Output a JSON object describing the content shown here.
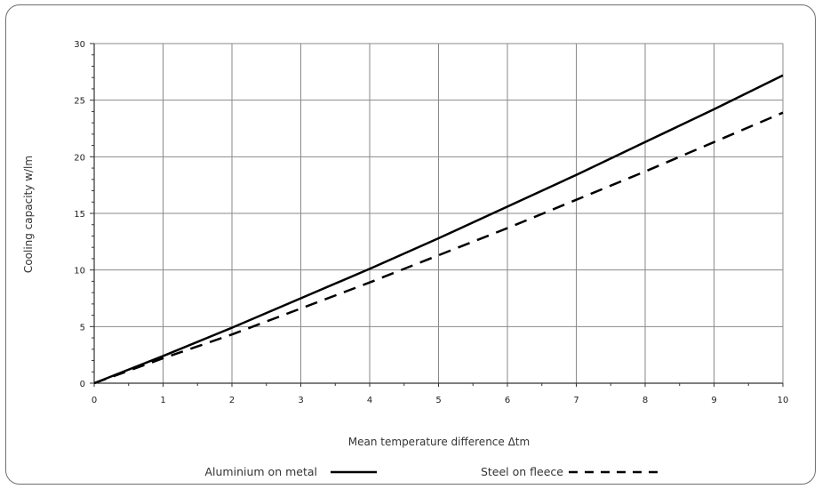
{
  "chart_data": {
    "type": "line",
    "xlabel": "Mean temperature difference Δtm",
    "ylabel": "Cooling capacity w/lm",
    "xlim": [
      0,
      10
    ],
    "ylim": [
      0,
      30
    ],
    "x_ticks": [
      "0",
      "1",
      "2",
      "3",
      "4",
      "5",
      "6",
      "7",
      "8",
      "9",
      "10"
    ],
    "y_ticks": [
      "0",
      "5",
      "10",
      "15",
      "20",
      "25",
      "30"
    ],
    "grid": true,
    "legend_position": "bottom",
    "series": [
      {
        "name": "Aluminium on metal",
        "style": "solid",
        "color": "#000000",
        "x": [
          0,
          1,
          2,
          3,
          4,
          5,
          6,
          7,
          8,
          9,
          10
        ],
        "y": [
          0,
          2.4,
          4.9,
          7.5,
          10.1,
          12.8,
          15.6,
          18.4,
          21.3,
          24.2,
          27.2
        ]
      },
      {
        "name": "Steel on fleece",
        "style": "dashed",
        "color": "#000000",
        "x": [
          0,
          1,
          2,
          3,
          4,
          5,
          6,
          7,
          8,
          9,
          10
        ],
        "y": [
          0,
          2.2,
          4.3,
          6.6,
          8.9,
          11.3,
          13.7,
          16.2,
          18.7,
          21.3,
          23.9
        ]
      }
    ]
  }
}
